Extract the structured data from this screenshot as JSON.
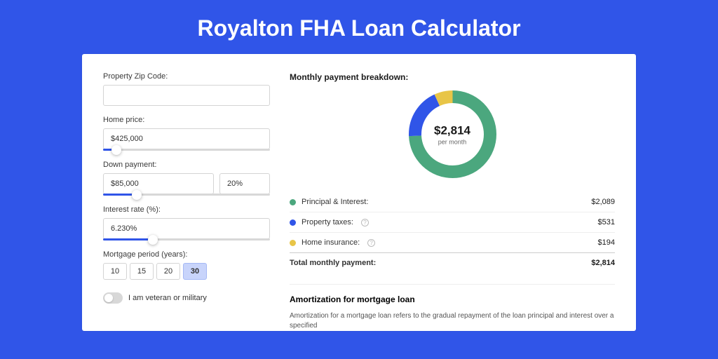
{
  "page_title": "Royalton FHA Loan Calculator",
  "colors": {
    "page_bg": "#3055e8",
    "card_bg": "#ffffff",
    "slider_fill": "#3055e8",
    "period_active_bg": "#c8d4fb"
  },
  "form": {
    "zip": {
      "label": "Property Zip Code:",
      "value": ""
    },
    "home_price": {
      "label": "Home price:",
      "value": "$425,000",
      "slider_pct": 8
    },
    "down_payment": {
      "label": "Down payment:",
      "value": "$85,000",
      "pct_value": "20%",
      "slider_pct": 20
    },
    "interest_rate": {
      "label": "Interest rate (%):",
      "value": "6.230%",
      "slider_pct": 30
    },
    "period": {
      "label": "Mortgage period (years):",
      "options": [
        "10",
        "15",
        "20",
        "30"
      ],
      "selected": "30"
    },
    "veteran": {
      "label": "I am veteran or military",
      "on": false
    }
  },
  "breakdown": {
    "title": "Monthly payment breakdown:",
    "donut": {
      "type": "donut",
      "size": 125,
      "stroke_width": 18,
      "center_amount": "$2,814",
      "center_sub": "per month",
      "slices": [
        {
          "key": "principal_interest",
          "value": 2089,
          "color": "#4ba77e"
        },
        {
          "key": "property_taxes",
          "value": 531,
          "color": "#3055e8"
        },
        {
          "key": "home_insurance",
          "value": 194,
          "color": "#e8c547"
        }
      ]
    },
    "rows": [
      {
        "dot": "#4ba77e",
        "label": "Principal & Interest:",
        "info": false,
        "value": "$2,089"
      },
      {
        "dot": "#3055e8",
        "label": "Property taxes:",
        "info": true,
        "value": "$531"
      },
      {
        "dot": "#e8c547",
        "label": "Home insurance:",
        "info": true,
        "value": "$194"
      }
    ],
    "total": {
      "label": "Total monthly payment:",
      "value": "$2,814"
    }
  },
  "amortization": {
    "title": "Amortization for mortgage loan",
    "text": "Amortization for a mortgage loan refers to the gradual repayment of the loan principal and interest over a specified"
  }
}
